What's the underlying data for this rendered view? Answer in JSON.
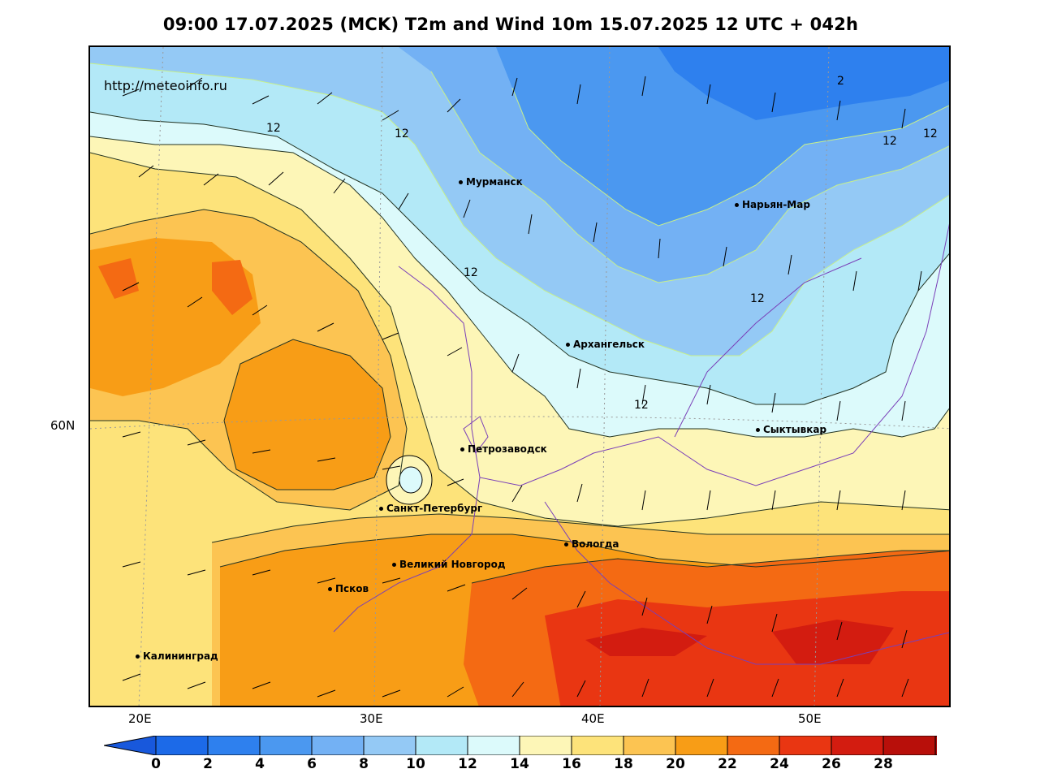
{
  "title": "09:00 17.07.2025 (MCK) T2m and Wind 10m 15.07.2025 12 UTC + 042h",
  "site": "http://meteoinfo.ru",
  "lon_labels": [
    "20E",
    "30E",
    "40E",
    "50E"
  ],
  "lat_labels": [
    "60N"
  ],
  "cities": [
    "Мурманск",
    "Нарьян-Мар",
    "Архангельск",
    "Сыктывкар",
    "Петрозаводск",
    "Санкт-Петербург",
    "Вологда",
    "Великий Новгород",
    "Псков",
    "Калининград"
  ],
  "isotherm_labels": [
    "12",
    "12",
    "12",
    "2",
    "12",
    "12",
    "12",
    "12"
  ],
  "colorbar": {
    "ticks": [
      "0",
      "2",
      "4",
      "6",
      "8",
      "10",
      "12",
      "14",
      "16",
      "18",
      "20",
      "22",
      "24",
      "26",
      "28"
    ],
    "colors": [
      "#1c6ae8",
      "#2e80ee",
      "#4b98f0",
      "#73b1f4",
      "#94c9f5",
      "#b3e9f7",
      "#dcfafb",
      "#fdf6b7",
      "#fde37a",
      "#fcc452",
      "#f89d16",
      "#f46a13",
      "#e93612",
      "#d31c10",
      "#b80f0a"
    ],
    "low_color": "#1858dc",
    "high_color": "#a50808"
  }
}
